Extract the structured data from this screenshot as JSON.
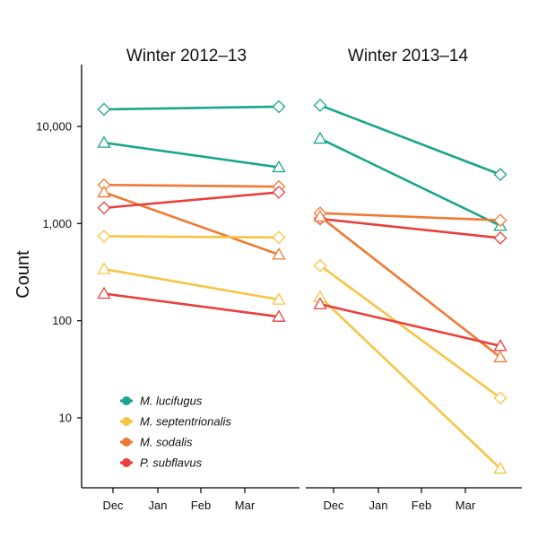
{
  "chart_data": {
    "type": "line",
    "ylabel": "Count",
    "yscale": "log",
    "ylim": [
      1.8,
      25000
    ],
    "yticks": [
      {
        "value": 10,
        "label": "10"
      },
      {
        "value": 100,
        "label": "100"
      },
      {
        "value": 1000,
        "label": "1,000"
      },
      {
        "value": 10000,
        "label": "10,000"
      }
    ],
    "xticks": [
      "Dec",
      "Jan",
      "Feb",
      "Mar"
    ],
    "legend": {
      "position": "bottom-left",
      "entries": [
        {
          "name": "M. lucifugus",
          "color": "#1aa68c"
        },
        {
          "name": "M. septentrionalis",
          "color": "#f7c443"
        },
        {
          "name": "M. sodalis",
          "color": "#ef7a35"
        },
        {
          "name": "P. subflavus",
          "color": "#e8403e"
        }
      ]
    },
    "panels": [
      {
        "title": "Winter 2012–13",
        "lines": [
          {
            "species": "M. lucifugus",
            "marker": "diamond",
            "values": [
              15000,
              16000
            ]
          },
          {
            "species": "M. lucifugus",
            "marker": "triangle",
            "values": [
              6800,
              3800
            ]
          },
          {
            "species": "M. sodalis",
            "marker": "diamond",
            "values": [
              2500,
              2400
            ]
          },
          {
            "species": "M. sodalis",
            "marker": "triangle",
            "values": [
              2100,
              480
            ]
          },
          {
            "species": "P. subflavus",
            "marker": "diamond",
            "values": [
              1450,
              2100
            ]
          },
          {
            "species": "M. septentrionalis",
            "marker": "diamond",
            "values": [
              740,
              720
            ]
          },
          {
            "species": "M. septentrionalis",
            "marker": "triangle",
            "values": [
              340,
              165
            ]
          },
          {
            "species": "P. subflavus",
            "marker": "triangle",
            "values": [
              190,
              110
            ]
          }
        ]
      },
      {
        "title": "Winter 2013–14",
        "lines": [
          {
            "species": "M. lucifugus",
            "marker": "diamond",
            "values": [
              16500,
              3200
            ]
          },
          {
            "species": "M. lucifugus",
            "marker": "triangle",
            "values": [
              7500,
              950
            ]
          },
          {
            "species": "M. sodalis",
            "marker": "diamond",
            "values": [
              1280,
              1080
            ]
          },
          {
            "species": "P. subflavus",
            "marker": "diamond",
            "values": [
              1120,
              710
            ]
          },
          {
            "species": "M. sodalis",
            "marker": "triangle",
            "values": [
              1180,
              42
            ]
          },
          {
            "species": "M. septentrionalis",
            "marker": "diamond",
            "values": [
              370,
              16
            ]
          },
          {
            "species": "M. septentrionalis",
            "marker": "triangle",
            "values": [
              175,
              3
            ]
          },
          {
            "species": "P. subflavus",
            "marker": "triangle",
            "values": [
              148,
              55
            ]
          }
        ]
      }
    ]
  }
}
